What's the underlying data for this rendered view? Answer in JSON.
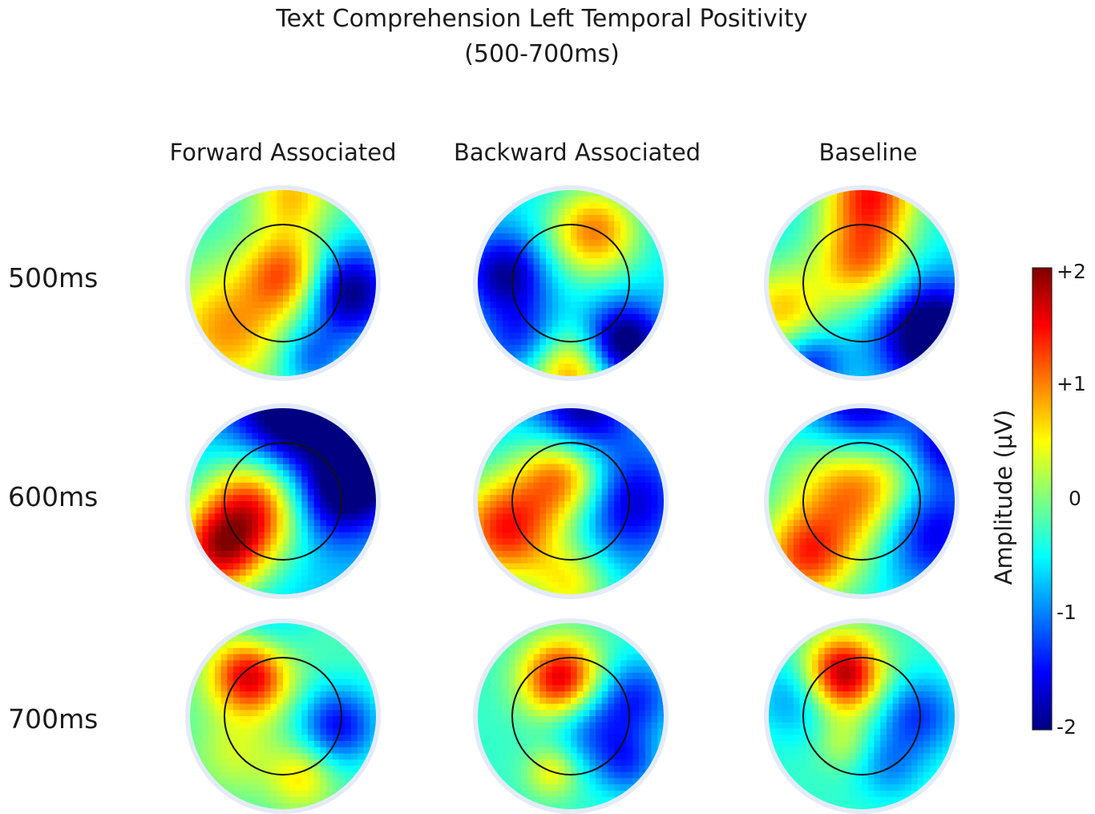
{
  "chart_data": {
    "type": "heatmap",
    "title": "Text Comprehension Left Temporal Positivity",
    "subtitle": "(500-700ms)",
    "columns": [
      "Forward Associated",
      "Backward Associated",
      "Baseline"
    ],
    "rows": [
      "500ms",
      "600ms",
      "700ms"
    ],
    "colorbar": {
      "label": "Amplitude (μV)",
      "range": [
        -2,
        2
      ],
      "ticks": [
        {
          "value": 2,
          "label": "+2"
        },
        {
          "value": 1,
          "label": "+1"
        },
        {
          "value": 0,
          "label": "0"
        },
        {
          "value": -1,
          "label": "-1"
        },
        {
          "value": -2,
          "label": "-2"
        }
      ],
      "colormap": "jet"
    },
    "topomaps": [
      [
        {
          "base": -0.3,
          "blobs": [
            [
              0.05,
              -0.1,
              0.32,
              1.5
            ],
            [
              -0.6,
              0.5,
              0.45,
              1.2
            ],
            [
              0.7,
              0.1,
              0.35,
              -1.8
            ],
            [
              0.1,
              -0.95,
              0.3,
              1.0
            ],
            [
              0.3,
              0.8,
              0.25,
              -0.8
            ]
          ]
        },
        {
          "base": -0.6,
          "blobs": [
            [
              0.25,
              -0.55,
              0.35,
              1.6
            ],
            [
              -0.7,
              -0.1,
              0.3,
              -1.3
            ],
            [
              0.0,
              0.95,
              0.35,
              1.6
            ],
            [
              0.55,
              0.65,
              0.3,
              -1.8
            ],
            [
              -0.5,
              0.6,
              0.3,
              -0.9
            ]
          ]
        },
        {
          "base": -0.5,
          "blobs": [
            [
              0.0,
              -0.25,
              0.35,
              1.5
            ],
            [
              -0.85,
              0.3,
              0.35,
              1.2
            ],
            [
              0.75,
              0.55,
              0.4,
              -2.0
            ],
            [
              0.1,
              -1.0,
              0.35,
              1.8
            ],
            [
              -0.55,
              0.85,
              0.25,
              -1.0
            ]
          ]
        }
      ],
      [
        {
          "base": -0.7,
          "blobs": [
            [
              -0.3,
              0.05,
              0.4,
              2.0
            ],
            [
              -0.7,
              0.55,
              0.35,
              2.0
            ],
            [
              0.5,
              0.0,
              0.35,
              -1.0
            ],
            [
              0.1,
              -0.95,
              0.45,
              -1.8
            ],
            [
              0.9,
              -0.3,
              0.35,
              -1.2
            ]
          ]
        },
        {
          "base": -0.6,
          "blobs": [
            [
              -0.05,
              -0.3,
              0.35,
              1.8
            ],
            [
              -0.7,
              0.3,
              0.4,
              2.0
            ],
            [
              0.6,
              0.0,
              0.4,
              -1.2
            ],
            [
              0.1,
              -0.9,
              0.35,
              -1.5
            ],
            [
              0.0,
              0.9,
              0.3,
              1.0
            ]
          ]
        },
        {
          "base": -0.5,
          "blobs": [
            [
              0.0,
              -0.15,
              0.5,
              1.8
            ],
            [
              -0.6,
              0.6,
              0.35,
              1.6
            ],
            [
              0.7,
              0.3,
              0.4,
              -1.4
            ],
            [
              0.0,
              -0.95,
              0.4,
              -1.6
            ],
            [
              0.9,
              -0.6,
              0.3,
              -1.2
            ]
          ]
        }
      ],
      [
        {
          "base": -0.2,
          "blobs": [
            [
              -0.35,
              -0.45,
              0.3,
              2.0
            ],
            [
              0.6,
              0.1,
              0.3,
              -1.3
            ],
            [
              -0.5,
              0.4,
              0.3,
              0.5
            ],
            [
              0.2,
              0.65,
              0.25,
              0.8
            ],
            [
              -0.2,
              -0.9,
              0.3,
              -0.6
            ]
          ]
        },
        {
          "base": -0.3,
          "blobs": [
            [
              -0.1,
              -0.4,
              0.3,
              2.0
            ],
            [
              0.7,
              -0.2,
              0.3,
              -1.0
            ],
            [
              0.2,
              0.1,
              0.3,
              -0.8
            ],
            [
              -0.2,
              0.6,
              0.2,
              0.8
            ],
            [
              0.6,
              0.5,
              0.25,
              -0.9
            ]
          ]
        },
        {
          "base": -0.3,
          "blobs": [
            [
              -0.2,
              -0.45,
              0.3,
              2.2
            ],
            [
              0.6,
              0.0,
              0.3,
              -1.0
            ],
            [
              -0.2,
              0.3,
              0.2,
              0.5
            ],
            [
              0.3,
              0.55,
              0.25,
              -0.6
            ],
            [
              -0.7,
              -0.2,
              0.3,
              -0.7
            ]
          ]
        }
      ]
    ]
  }
}
